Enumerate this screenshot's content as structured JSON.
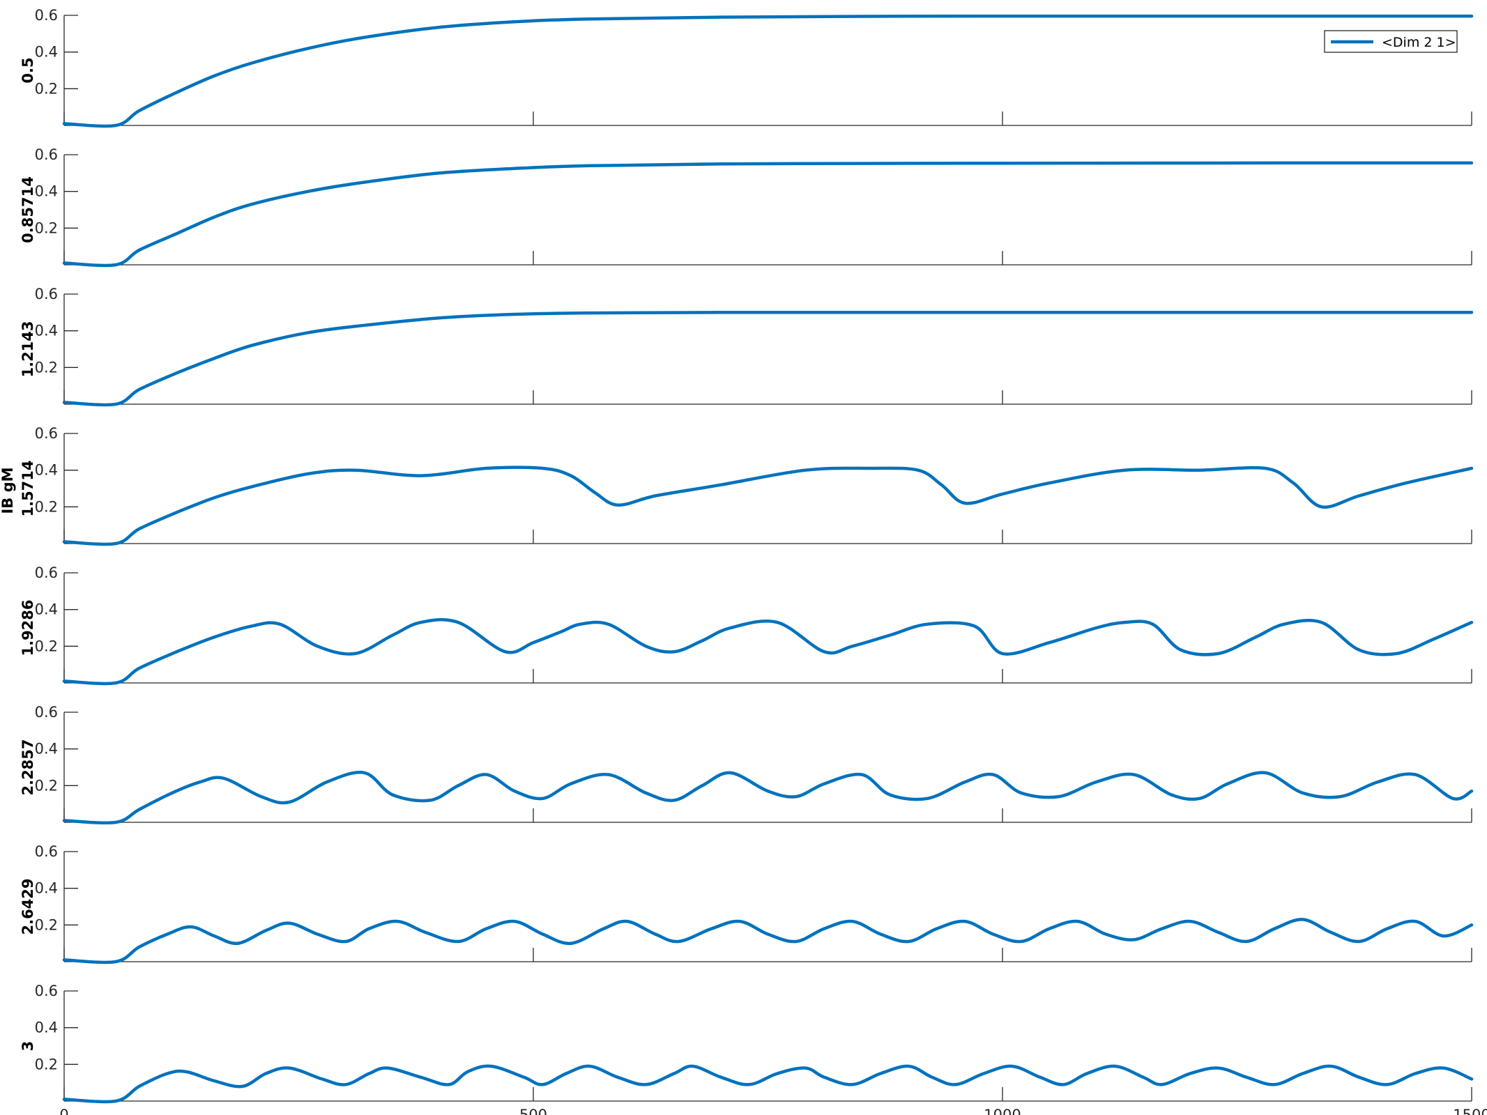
{
  "chart_data": {
    "type": "line",
    "layout": "stacked",
    "group_ylabel": "IB gM",
    "xlim": [
      0,
      1500
    ],
    "ylim": [
      0,
      0.6
    ],
    "xticks": [
      "0",
      "500",
      "1000",
      "1500"
    ],
    "yticks": [
      "0.2",
      "0.4",
      "0.6"
    ],
    "series_color": "#0072BD",
    "legend": {
      "label": "<Dim 2 1>",
      "placement": "top-right"
    },
    "panels": [
      {
        "ylabel": "0.5",
        "series": [
          {
            "name": "<Dim 2 1>",
            "x": [
              0,
              55,
              80,
              120,
              160,
              200,
              260,
              320,
              400,
              480,
              560,
              700,
              900,
              1100,
              1300,
              1500
            ],
            "y": [
              0.01,
              0.0,
              0.08,
              0.18,
              0.27,
              0.34,
              0.42,
              0.48,
              0.535,
              0.565,
              0.58,
              0.59,
              0.595,
              0.596,
              0.596,
              0.596
            ]
          }
        ]
      },
      {
        "ylabel": "0.85714",
        "series": [
          {
            "name": "<Dim 2 1>",
            "x": [
              0,
              55,
              80,
              120,
              160,
              200,
              260,
              320,
              400,
              480,
              560,
              700,
              900,
              1100,
              1300,
              1500
            ],
            "y": [
              0.01,
              0.0,
              0.08,
              0.17,
              0.26,
              0.33,
              0.4,
              0.45,
              0.5,
              0.525,
              0.54,
              0.55,
              0.553,
              0.554,
              0.555,
              0.555
            ]
          }
        ]
      },
      {
        "ylabel": "1.2143",
        "series": [
          {
            "name": "<Dim 2 1>",
            "x": [
              0,
              55,
              80,
              120,
              160,
              200,
              260,
              320,
              400,
              480,
              560,
              700,
              900,
              1100,
              1300,
              1500
            ],
            "y": [
              0.01,
              0.0,
              0.08,
              0.17,
              0.25,
              0.32,
              0.39,
              0.43,
              0.47,
              0.49,
              0.497,
              0.5,
              0.5,
              0.5,
              0.5,
              0.5
            ]
          }
        ]
      },
      {
        "ylabel": "1.5714",
        "series": [
          {
            "name": "<Dim 2 1>",
            "x": [
              0,
              55,
              80,
              120,
              160,
              200,
              260,
              310,
              380,
              450,
              510,
              540,
              565,
              590,
              630,
              700,
              790,
              860,
              910,
              935,
              960,
              1000,
              1050,
              1130,
              1210,
              1280,
              1310,
              1340,
              1380,
              1430,
              1500
            ],
            "y": [
              0.01,
              0.0,
              0.08,
              0.17,
              0.25,
              0.31,
              0.38,
              0.4,
              0.37,
              0.41,
              0.41,
              0.37,
              0.28,
              0.21,
              0.26,
              0.32,
              0.4,
              0.41,
              0.4,
              0.32,
              0.22,
              0.27,
              0.33,
              0.4,
              0.4,
              0.41,
              0.33,
              0.2,
              0.26,
              0.33,
              0.41
            ]
          }
        ]
      },
      {
        "ylabel": "1.9286",
        "series": [
          {
            "name": "<Dim 2 1>",
            "x": [
              0,
              55,
              80,
              120,
              160,
              200,
              230,
              270,
              310,
              350,
              380,
              420,
              470,
              500,
              530,
              550,
              580,
              620,
              650,
              680,
              710,
              760,
              810,
              840,
              880,
              920,
              970,
              1000,
              1050,
              1100,
              1130,
              1160,
              1190,
              1230,
              1270,
              1300,
              1340,
              1380,
              1420,
              1460,
              1500
            ],
            "y": [
              0.01,
              0.0,
              0.08,
              0.17,
              0.25,
              0.31,
              0.32,
              0.2,
              0.16,
              0.26,
              0.33,
              0.33,
              0.17,
              0.22,
              0.28,
              0.32,
              0.32,
              0.2,
              0.17,
              0.23,
              0.3,
              0.33,
              0.17,
              0.2,
              0.26,
              0.32,
              0.31,
              0.16,
              0.22,
              0.3,
              0.33,
              0.32,
              0.18,
              0.16,
              0.25,
              0.32,
              0.33,
              0.18,
              0.16,
              0.24,
              0.33
            ]
          }
        ]
      },
      {
        "ylabel": "2.2857",
        "series": [
          {
            "name": "<Dim 2 1>",
            "x": [
              0,
              55,
              80,
              115,
              145,
              170,
              210,
              240,
              280,
              320,
              350,
              390,
              420,
              450,
              480,
              510,
              540,
              580,
              620,
              650,
              680,
              710,
              750,
              780,
              810,
              850,
              880,
              920,
              960,
              990,
              1020,
              1060,
              1100,
              1140,
              1180,
              1210,
              1240,
              1280,
              1320,
              1360,
              1400,
              1440,
              1480,
              1500
            ],
            "y": [
              0.01,
              0.0,
              0.07,
              0.16,
              0.22,
              0.24,
              0.14,
              0.11,
              0.22,
              0.27,
              0.15,
              0.12,
              0.2,
              0.26,
              0.17,
              0.13,
              0.21,
              0.26,
              0.16,
              0.12,
              0.2,
              0.27,
              0.17,
              0.14,
              0.21,
              0.26,
              0.15,
              0.13,
              0.22,
              0.26,
              0.16,
              0.14,
              0.22,
              0.26,
              0.15,
              0.13,
              0.21,
              0.27,
              0.16,
              0.14,
              0.22,
              0.26,
              0.13,
              0.17
            ]
          }
        ]
      },
      {
        "ylabel": "2.6429",
        "series": [
          {
            "name": "<Dim 2 1>",
            "x": [
              0,
              55,
              80,
              110,
              135,
              160,
              185,
              215,
              240,
              270,
              300,
              325,
              355,
              385,
              420,
              450,
              480,
              510,
              540,
              575,
              600,
              630,
              655,
              690,
              720,
              750,
              780,
              810,
              840,
              870,
              900,
              930,
              960,
              990,
              1020,
              1050,
              1080,
              1110,
              1140,
              1170,
              1200,
              1230,
              1260,
              1290,
              1320,
              1350,
              1380,
              1410,
              1440,
              1470,
              1500
            ],
            "y": [
              0.01,
              0.0,
              0.08,
              0.15,
              0.19,
              0.14,
              0.1,
              0.17,
              0.21,
              0.15,
              0.11,
              0.18,
              0.22,
              0.16,
              0.11,
              0.18,
              0.22,
              0.15,
              0.1,
              0.18,
              0.22,
              0.15,
              0.11,
              0.18,
              0.22,
              0.15,
              0.11,
              0.18,
              0.22,
              0.15,
              0.11,
              0.18,
              0.22,
              0.15,
              0.11,
              0.18,
              0.22,
              0.15,
              0.12,
              0.18,
              0.22,
              0.16,
              0.11,
              0.18,
              0.23,
              0.16,
              0.11,
              0.18,
              0.22,
              0.14,
              0.2
            ]
          }
        ]
      },
      {
        "ylabel": "3",
        "series": [
          {
            "name": "<Dim 2 1>",
            "x": [
              0,
              55,
              80,
              110,
              130,
              160,
              190,
              215,
              240,
              275,
              300,
              325,
              345,
              380,
              410,
              430,
              455,
              490,
              510,
              535,
              560,
              590,
              620,
              650,
              670,
              700,
              730,
              760,
              790,
              810,
              840,
              870,
              900,
              925,
              950,
              980,
              1010,
              1040,
              1065,
              1090,
              1120,
              1150,
              1170,
              1200,
              1230,
              1260,
              1290,
              1320,
              1350,
              1380,
              1410,
              1440,
              1470,
              1500
            ],
            "y": [
              0.01,
              0.0,
              0.08,
              0.15,
              0.16,
              0.11,
              0.08,
              0.15,
              0.18,
              0.12,
              0.09,
              0.15,
              0.18,
              0.13,
              0.09,
              0.16,
              0.19,
              0.13,
              0.09,
              0.15,
              0.19,
              0.13,
              0.09,
              0.15,
              0.19,
              0.13,
              0.09,
              0.15,
              0.18,
              0.13,
              0.09,
              0.15,
              0.19,
              0.13,
              0.09,
              0.15,
              0.19,
              0.13,
              0.09,
              0.15,
              0.19,
              0.13,
              0.09,
              0.15,
              0.18,
              0.13,
              0.09,
              0.15,
              0.19,
              0.13,
              0.09,
              0.15,
              0.18,
              0.12
            ]
          }
        ]
      }
    ]
  }
}
